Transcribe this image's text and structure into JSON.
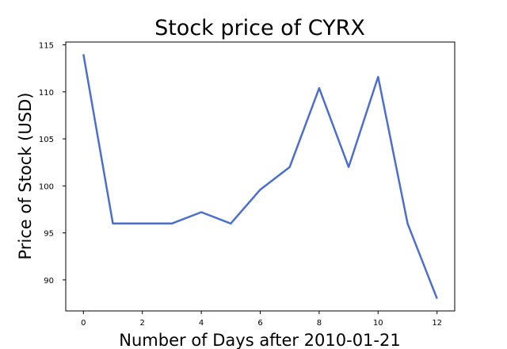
{
  "chart_data": {
    "type": "line",
    "title": "Stock price of CYRX",
    "xlabel": "Number of Days after 2010-01-21",
    "ylabel": "Price of Stock (USD)",
    "x": [
      0,
      1,
      2,
      3,
      4,
      5,
      6,
      7,
      8,
      9,
      10,
      11,
      12
    ],
    "series": [
      {
        "values": [
          114,
          96,
          96,
          96,
          97.2,
          96,
          99.6,
          102,
          110.4,
          102,
          111.6,
          96,
          88
        ]
      }
    ],
    "xlim": [
      -0.6,
      12.6
    ],
    "ylim": [
      86.7,
      115.3
    ],
    "xticks": [
      0,
      2,
      4,
      6,
      8,
      10,
      12
    ],
    "yticks": [
      90,
      95,
      100,
      105,
      110,
      115
    ],
    "line_color": "#4c6fcf",
    "grid": false,
    "legend": "none"
  }
}
